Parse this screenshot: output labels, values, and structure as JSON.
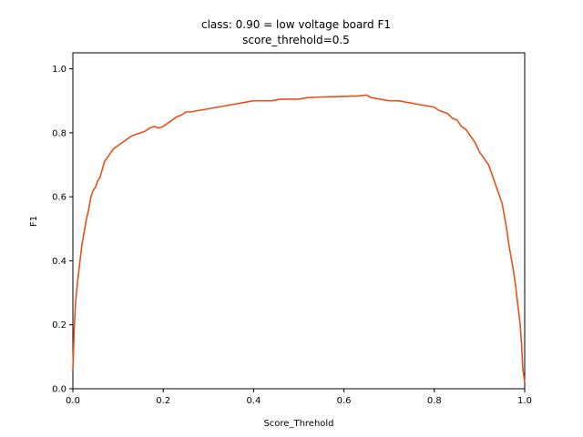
{
  "chart_data": {
    "type": "line",
    "title": "class: 0.90 = low voltage board F1",
    "subtitle": "score_threhold=0.5",
    "xlabel": "Score_Threhold",
    "ylabel": "F1",
    "xlim": [
      0.0,
      1.0
    ],
    "ylim": [
      0.0,
      1.05
    ],
    "xticks": [
      0.0,
      0.2,
      0.4,
      0.6,
      0.8,
      1.0
    ],
    "xtick_labels": [
      "0.0",
      "0.2",
      "0.4",
      "0.6",
      "0.8",
      "1.0"
    ],
    "yticks": [
      0.0,
      0.2,
      0.4,
      0.6,
      0.8,
      1.0
    ],
    "ytick_labels": [
      "0.0",
      "0.2",
      "0.4",
      "0.6",
      "0.8",
      "1.0"
    ],
    "grid": false,
    "legend": "none",
    "color": "#e8501a",
    "series": [
      {
        "x": [
          0.0,
          0.003,
          0.006,
          0.01,
          0.015,
          0.02,
          0.025,
          0.03,
          0.035,
          0.04,
          0.045,
          0.05,
          0.055,
          0.06,
          0.07,
          0.08,
          0.09,
          0.1,
          0.11,
          0.12,
          0.13,
          0.14,
          0.15,
          0.16,
          0.17,
          0.18,
          0.19,
          0.2,
          0.21,
          0.22,
          0.23,
          0.24,
          0.25,
          0.26,
          0.28,
          0.3,
          0.32,
          0.34,
          0.36,
          0.38,
          0.4,
          0.42,
          0.44,
          0.46,
          0.48,
          0.5,
          0.52,
          0.55,
          0.58,
          0.6,
          0.63,
          0.65,
          0.66,
          0.68,
          0.7,
          0.72,
          0.74,
          0.76,
          0.78,
          0.8,
          0.81,
          0.82,
          0.83,
          0.84,
          0.85,
          0.86,
          0.87,
          0.88,
          0.89,
          0.9,
          0.91,
          0.92,
          0.93,
          0.94,
          0.945,
          0.95,
          0.955,
          0.96,
          0.965,
          0.97,
          0.975,
          0.98,
          0.985,
          0.99,
          0.993,
          0.996,
          1.0
        ],
        "y": [
          0.06,
          0.19,
          0.27,
          0.33,
          0.39,
          0.45,
          0.49,
          0.53,
          0.56,
          0.6,
          0.62,
          0.63,
          0.65,
          0.66,
          0.71,
          0.73,
          0.75,
          0.76,
          0.77,
          0.78,
          0.79,
          0.795,
          0.8,
          0.805,
          0.815,
          0.82,
          0.815,
          0.82,
          0.83,
          0.84,
          0.85,
          0.855,
          0.865,
          0.865,
          0.87,
          0.875,
          0.88,
          0.885,
          0.89,
          0.895,
          0.9,
          0.9,
          0.9,
          0.905,
          0.905,
          0.905,
          0.91,
          0.912,
          0.913,
          0.914,
          0.915,
          0.918,
          0.91,
          0.905,
          0.9,
          0.9,
          0.895,
          0.89,
          0.885,
          0.88,
          0.87,
          0.865,
          0.86,
          0.845,
          0.84,
          0.82,
          0.81,
          0.79,
          0.77,
          0.74,
          0.72,
          0.7,
          0.66,
          0.62,
          0.6,
          0.58,
          0.54,
          0.5,
          0.45,
          0.41,
          0.37,
          0.32,
          0.26,
          0.2,
          0.14,
          0.06,
          0.02
        ]
      }
    ]
  }
}
